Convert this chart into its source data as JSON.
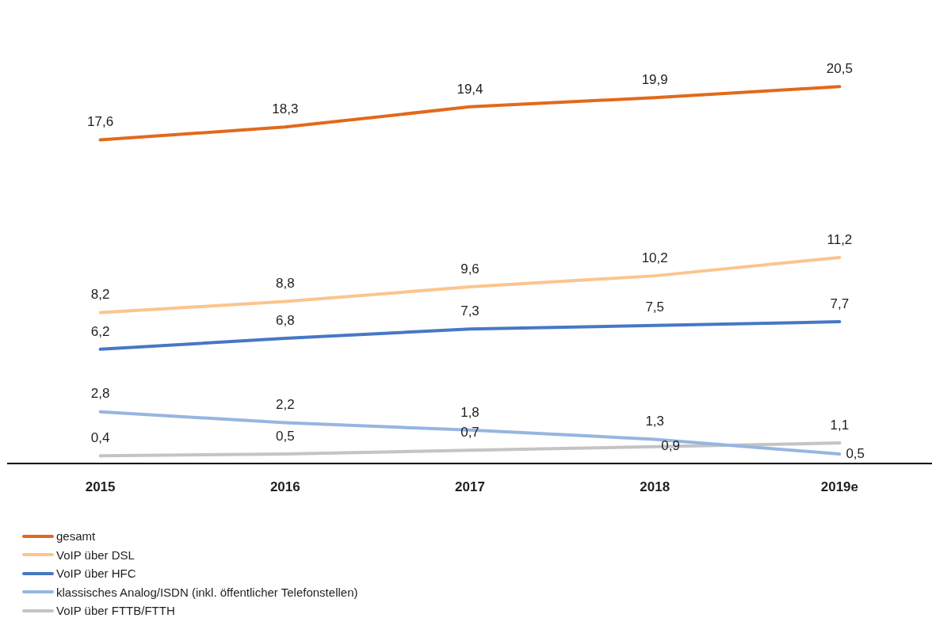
{
  "chart_data": {
    "type": "line",
    "categories": [
      "2015",
      "2016",
      "2017",
      "2018",
      "2019e"
    ],
    "series": [
      {
        "name": "gesamt",
        "color": "#e2691b",
        "values": [
          17.6,
          18.3,
          19.4,
          19.9,
          20.5
        ],
        "value_labels": [
          "17,6",
          "18,3",
          "19,4",
          "19,9",
          "20,5"
        ]
      },
      {
        "name": "VoIP über DSL",
        "color": "#fbc58e",
        "values": [
          8.2,
          8.8,
          9.6,
          10.2,
          11.2
        ],
        "value_labels": [
          "8,2",
          "8,8",
          "9,6",
          "10,2",
          "11,2"
        ]
      },
      {
        "name": "VoIP über HFC",
        "color": "#4678c4",
        "values": [
          6.2,
          6.8,
          7.3,
          7.5,
          7.7
        ],
        "value_labels": [
          "6,2",
          "6,8",
          "7,3",
          "7,5",
          "7,7"
        ]
      },
      {
        "name": "klassisches Analog/ISDN (inkl. öffentlicher Telefonstellen)",
        "color": "#97b5e0",
        "values": [
          2.8,
          2.2,
          1.8,
          1.3,
          0.5
        ],
        "value_labels": [
          "2,8",
          "2,2",
          "1,8",
          "1,3",
          "0,5"
        ]
      },
      {
        "name": "VoIP über FTTB/FTTH",
        "color": "#c4c4c4",
        "values": [
          0.4,
          0.5,
          0.7,
          0.9,
          1.1
        ],
        "value_labels": [
          "0,4",
          "0,5",
          "0,7",
          "0,9",
          "1,1"
        ]
      }
    ],
    "tick_labels": "x",
    "grid": false,
    "legend": "bottom",
    "marker": "none",
    "line_style": "solid"
  }
}
